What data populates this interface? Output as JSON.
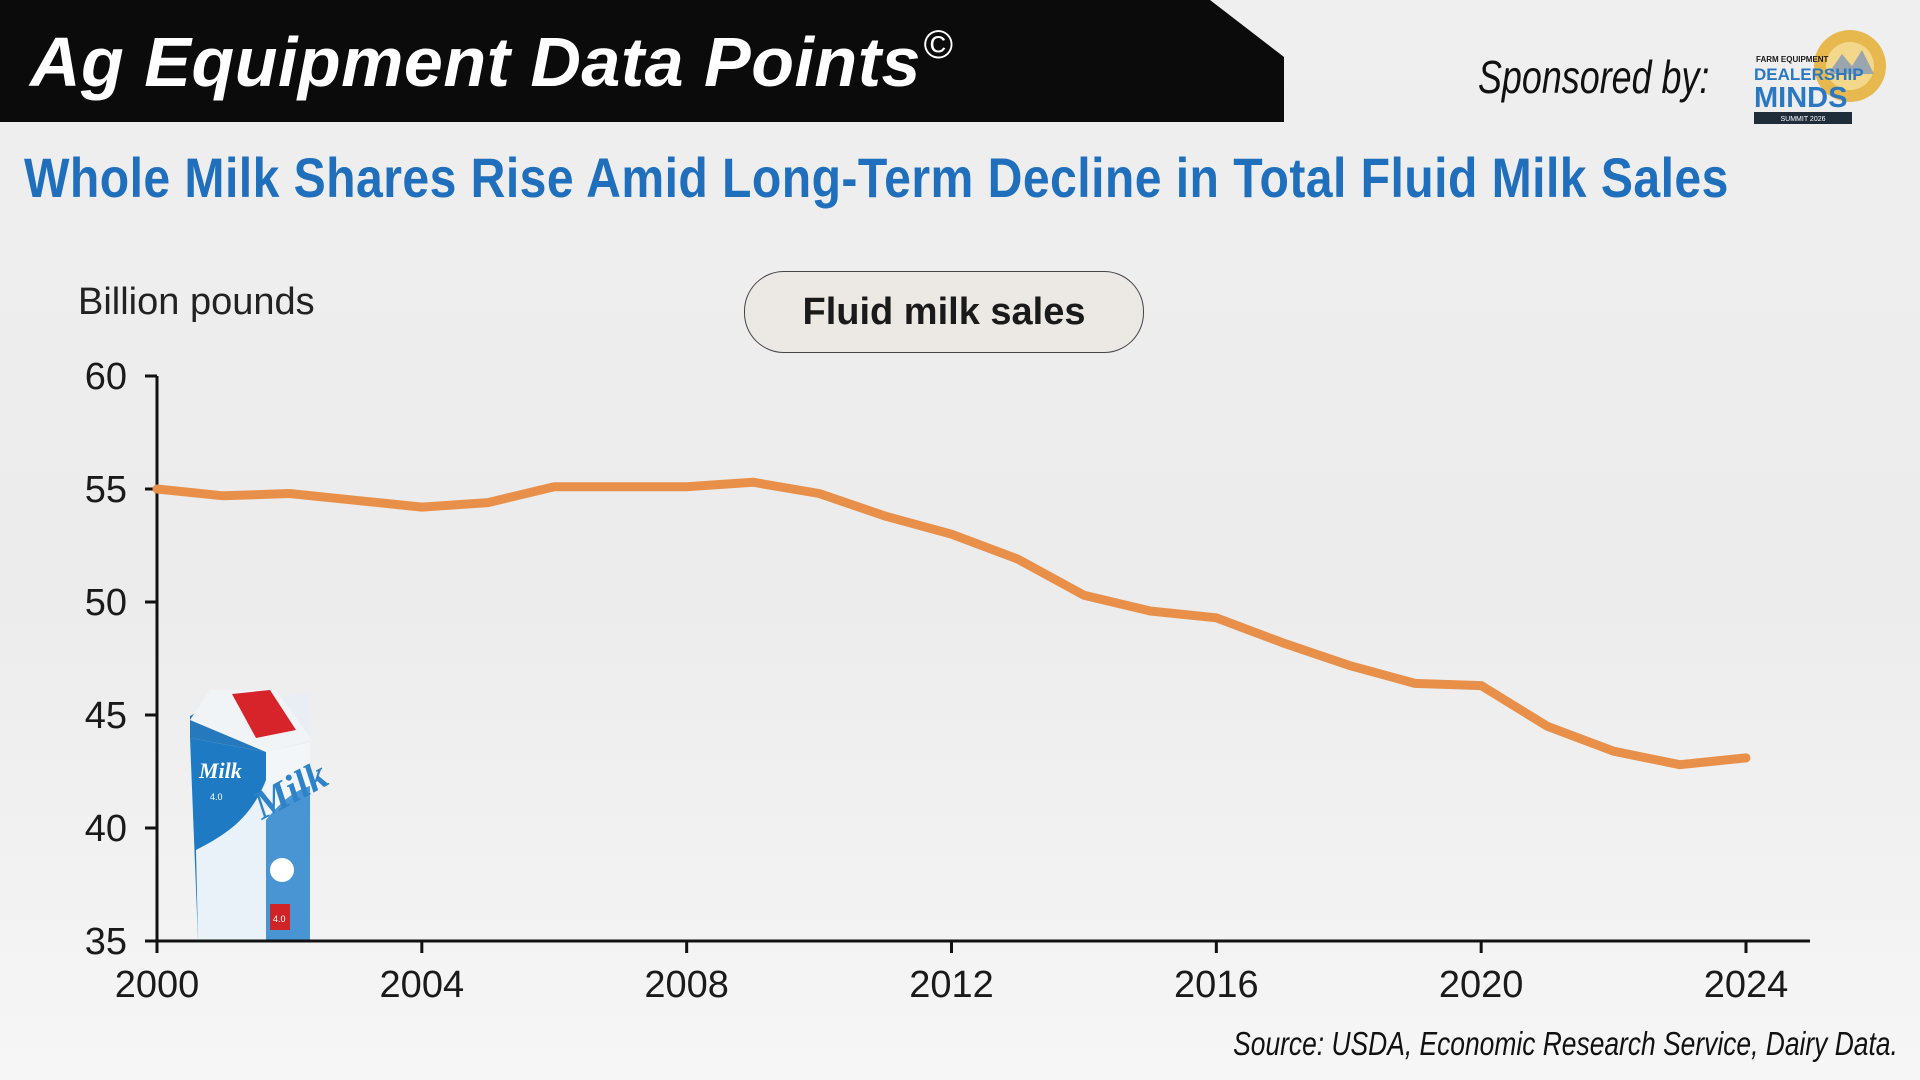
{
  "header": {
    "title": "Ag Equipment Data Points",
    "copyright_symbol": "©",
    "sponsored_label": "Sponsored by:",
    "logo": {
      "line1": "FARM EQUIPMENT",
      "line2": "DEALERSHIP",
      "line3": "MINDS",
      "line4": "SUMMIT 2026"
    }
  },
  "headline": "Whole Milk Shares Rise Amid Long-Term Decline in Total Fluid Milk Sales",
  "carton": {
    "label_big": "Milk",
    "label_small": "Milk",
    "badge": "4.0",
    "small_text": "4.0"
  },
  "chart_data": {
    "type": "line",
    "title": "Fluid milk sales",
    "ylabel": "Billion pounds",
    "xlabel": "",
    "x": [
      2000,
      2001,
      2002,
      2003,
      2004,
      2005,
      2006,
      2007,
      2008,
      2009,
      2010,
      2011,
      2012,
      2013,
      2014,
      2015,
      2016,
      2017,
      2018,
      2019,
      2020,
      2021,
      2022,
      2023,
      2024
    ],
    "series": [
      {
        "values": [
          55.0,
          54.7,
          54.8,
          54.5,
          54.2,
          54.4,
          55.1,
          55.1,
          55.1,
          55.3,
          54.8,
          53.8,
          53.0,
          51.9,
          50.3,
          49.6,
          49.3,
          48.2,
          47.2,
          46.4,
          46.3,
          44.5,
          43.4,
          42.8,
          43.1
        ]
      }
    ],
    "color": "#e8904a",
    "xlim": [
      2000,
      2025
    ],
    "ylim": [
      35,
      60
    ],
    "xticks": [
      2000,
      2004,
      2008,
      2012,
      2016,
      2020,
      2024
    ],
    "yticks": [
      35,
      40,
      45,
      50,
      55,
      60
    ],
    "grid": false
  },
  "source": "Source: USDA, Economic Research Service, Dairy Data."
}
